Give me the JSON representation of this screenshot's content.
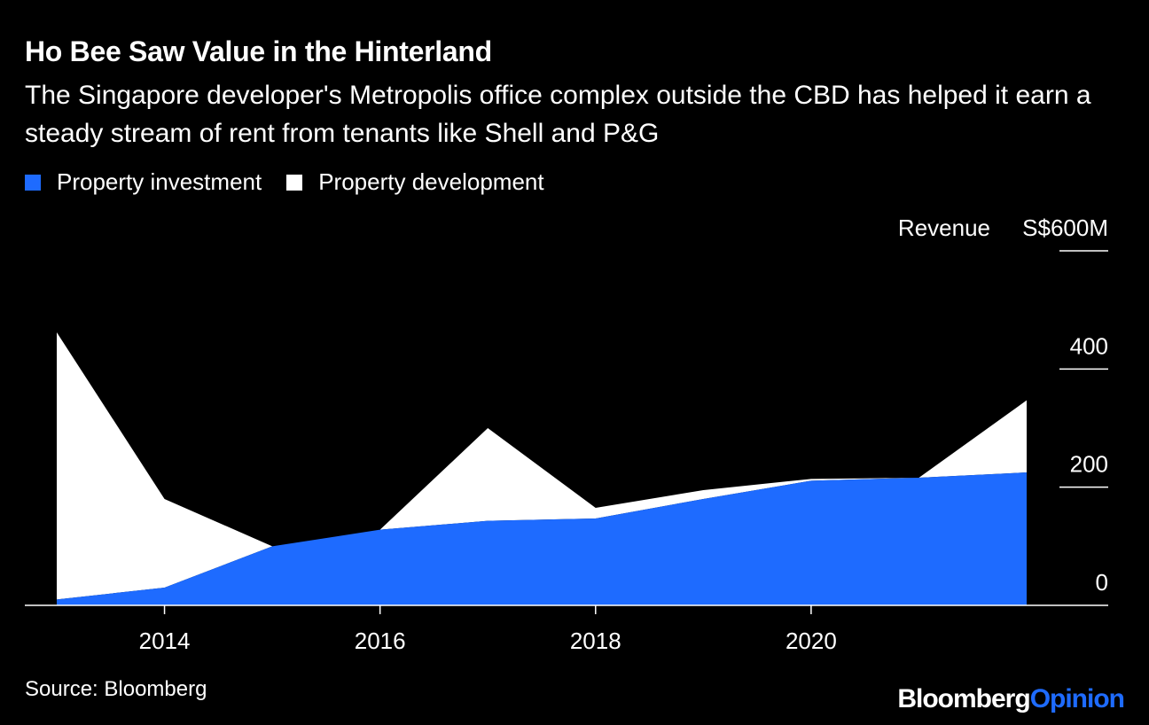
{
  "header": {
    "title": "Ho Bee Saw Value in the Hinterland",
    "subtitle": "The Singapore developer's Metropolis office complex outside the CBD has helped it earn a steady stream of rent from tenants like Shell and P&G"
  },
  "footer": {
    "source": "Source: Bloomberg",
    "logo_part1": "Bloomberg",
    "logo_part2": "Opinion"
  },
  "colors": {
    "background": "#000000",
    "investment": "#1e6bff",
    "development": "#ffffff",
    "axis": "#ffffff"
  },
  "chart_data": {
    "type": "area",
    "stacked": true,
    "x": [
      2013,
      2014,
      2015,
      2016,
      2017,
      2018,
      2019,
      2020,
      2021,
      2022
    ],
    "series": [
      {
        "name": "Property investment",
        "values": [
          10,
          30,
          100,
          128,
          143,
          147,
          180,
          211,
          216,
          225
        ]
      },
      {
        "name": "Property development",
        "values": [
          452,
          150,
          0,
          0,
          157,
          18,
          15,
          3,
          0,
          122
        ]
      }
    ],
    "x_ticks": [
      2014,
      2016,
      2018,
      2020
    ],
    "x_tick_labels": [
      "2014",
      "2016",
      "2018",
      "2020"
    ],
    "y_ticks": [
      0,
      200,
      400,
      600
    ],
    "y_tick_labels": [
      "0",
      "200",
      "400",
      "S$600M"
    ],
    "ylabel": "Revenue",
    "ylim": [
      0,
      600
    ],
    "xlim": [
      2012.7,
      2023.1
    ],
    "legend_position": "top-left",
    "grid": false
  }
}
